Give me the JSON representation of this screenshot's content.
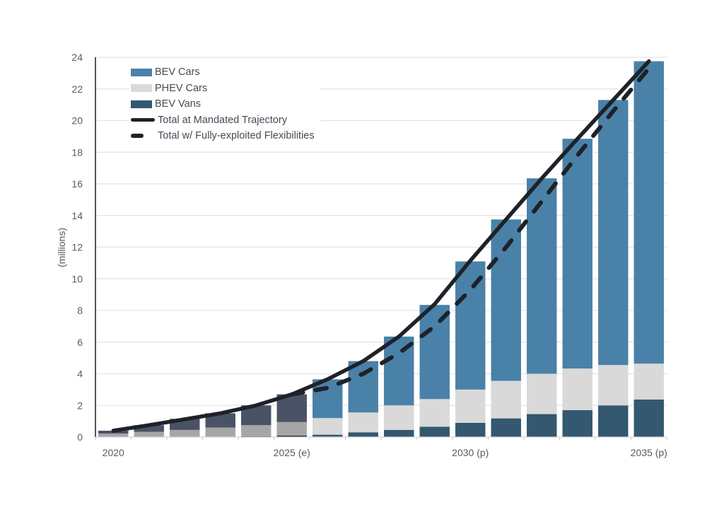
{
  "chart_data": {
    "type": "bar",
    "stacked": true,
    "title": "",
    "xlabel": "",
    "ylabel": "(millions)",
    "ylim": [
      0,
      24
    ],
    "yticks": [
      0,
      2,
      4,
      6,
      8,
      10,
      12,
      14,
      16,
      18,
      20,
      22,
      24
    ],
    "grid": true,
    "legend_position": "top-left",
    "categories": [
      "2020",
      "2021",
      "2022",
      "2023",
      "2024",
      "2025",
      "2026",
      "2027",
      "2028",
      "2029",
      "2030",
      "2031",
      "2032",
      "2033",
      "2034",
      "2035"
    ],
    "xtick_labels": [
      {
        "index": 0,
        "label": "2020"
      },
      {
        "index": 5,
        "label": "2025 (e)"
      },
      {
        "index": 10,
        "label": "2030 (p)"
      },
      {
        "index": 15,
        "label": "2035 (p)"
      }
    ],
    "historical_through_index": 5,
    "series": [
      {
        "name": "BEV Vans",
        "kind": "bar",
        "color": "#33586f",
        "historical_color": "#2b2f38",
        "values": [
          0.0,
          0.0,
          0.02,
          0.03,
          0.05,
          0.1,
          0.15,
          0.3,
          0.45,
          0.65,
          0.9,
          1.18,
          1.45,
          1.7,
          2.0,
          2.37
        ]
      },
      {
        "name": "PHEV Cars",
        "kind": "bar",
        "color": "#d9d9d9",
        "historical_color": "#a6a6a6",
        "values": [
          0.22,
          0.33,
          0.43,
          0.57,
          0.7,
          0.85,
          1.05,
          1.25,
          1.55,
          1.75,
          2.1,
          2.37,
          2.55,
          2.63,
          2.55,
          2.27
        ]
      },
      {
        "name": "BEV Cars",
        "kind": "bar",
        "color": "#4a81a8",
        "historical_color": "#4a5265",
        "values": [
          0.18,
          0.42,
          0.7,
          0.9,
          1.25,
          1.75,
          2.45,
          3.25,
          4.35,
          5.95,
          8.1,
          10.2,
          12.35,
          14.52,
          16.75,
          19.11
        ]
      },
      {
        "name": "Total at Mandated Trajectory",
        "kind": "line",
        "style": "solid",
        "color": "#1e2228",
        "values": [
          0.4,
          0.75,
          1.12,
          1.5,
          2.0,
          2.7,
          3.65,
          4.8,
          6.35,
          8.4,
          11.15,
          13.75,
          16.35,
          18.85,
          21.3,
          23.75
        ]
      },
      {
        "name": "Total w/ Fully-exploited Flexibilities",
        "kind": "line",
        "style": "dashed",
        "color": "#1e2228",
        "start_index": 5,
        "values": [
          null,
          null,
          null,
          null,
          null,
          2.7,
          3.1,
          4.0,
          5.3,
          7.0,
          9.3,
          12.0,
          14.9,
          17.8,
          20.6,
          23.3
        ]
      }
    ]
  },
  "legend": [
    {
      "label": "BEV Cars",
      "color": "#4a81a8",
      "kind": "bar"
    },
    {
      "label": "PHEV Cars",
      "color": "#d9d9d9",
      "kind": "bar"
    },
    {
      "label": "BEV Vans",
      "color": "#33586f",
      "kind": "bar"
    },
    {
      "label": "Total at Mandated Trajectory",
      "color": "#1e2228",
      "kind": "solid"
    },
    {
      "label": "Total w/ Fully-exploited Flexibilities",
      "color": "#1e2228",
      "kind": "dashed"
    }
  ]
}
